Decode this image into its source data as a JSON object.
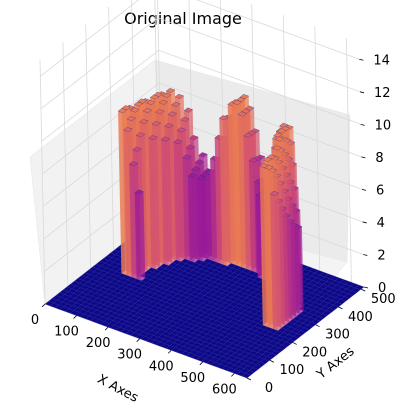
{
  "chart_data": {
    "type": "bar3d",
    "title": "Original Image",
    "xlabel": "X Axes",
    "ylabel": "Y Axes",
    "zlabel": "",
    "xlim": [
      0,
      640
    ],
    "ylim": [
      0,
      512
    ],
    "zlim": [
      0,
      15
    ],
    "x_ticks": [
      "0",
      "100",
      "200",
      "300",
      "400",
      "500",
      "600"
    ],
    "y_ticks": [
      "0",
      "100",
      "200",
      "300",
      "400",
      "500"
    ],
    "z_ticks": [
      "0",
      "2",
      "4",
      "6",
      "8",
      "10",
      "12",
      "14"
    ],
    "colormap": "plasma",
    "base_color": "#0d0887",
    "grid": true,
    "surface": {
      "shape": "semi-annulus",
      "center_x": 330,
      "center_y": 260,
      "radius_x": 225,
      "radius_y": 175,
      "ring_width": 45,
      "ring_height": [
        5,
        10
      ],
      "background_height": 0
    }
  }
}
